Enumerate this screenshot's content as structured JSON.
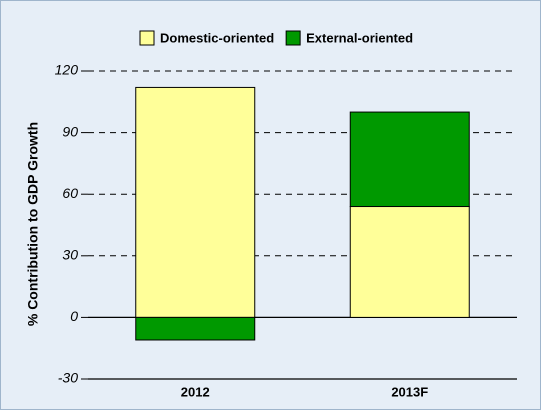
{
  "chart_data": {
    "type": "stacked_bar",
    "y_label": "% Contribution to GDP Growth",
    "categories": [
      "2012",
      "2013F"
    ],
    "series": [
      {
        "name": "Domestic-oriented",
        "color": "#ffff99",
        "values": [
          112,
          54
        ]
      },
      {
        "name": "External-oriented",
        "color": "#009900",
        "values": [
          -11,
          46
        ]
      }
    ],
    "ylim": [
      -30,
      120
    ],
    "yticks": [
      -30,
      0,
      30,
      60,
      90,
      120
    ],
    "grid": true,
    "legend": "top"
  }
}
